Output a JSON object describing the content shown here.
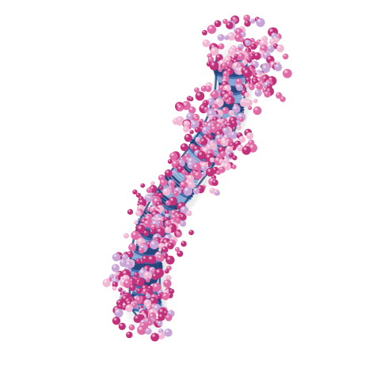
{
  "image": {
    "subject": "molecular-helix",
    "colors": {
      "background": "#ffffff",
      "helix_dark": "#1f3f78",
      "helix_mid": "#3b66a8",
      "helix_light": "#7fa6d6",
      "bead_magenta": "#c2307a",
      "bead_pink": "#e06aa6",
      "bead_light": "#f1b7d3",
      "bead_lavender": "#c9a4d6"
    }
  }
}
